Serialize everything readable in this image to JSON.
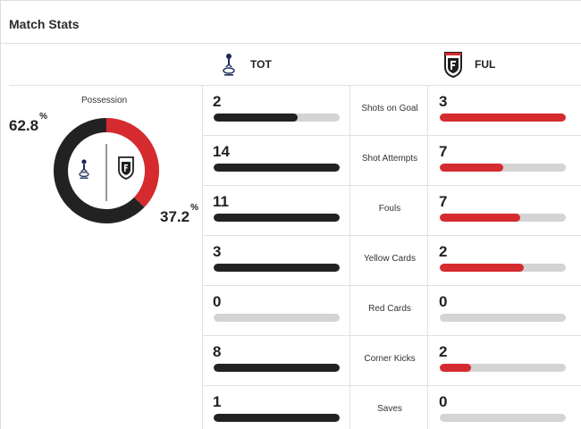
{
  "title": "Match Stats",
  "colors": {
    "home": "#222222",
    "away": "#d52b2f",
    "track": "#d4d4d4"
  },
  "home": {
    "abbr": "TOT",
    "logo_icon": "tottenham-crest-icon"
  },
  "away": {
    "abbr": "FUL",
    "logo_icon": "fulham-crest-icon"
  },
  "possession": {
    "label": "Possession",
    "home_value": "62.8",
    "away_value": "37.2",
    "unit": "%",
    "home_fraction": 0.628,
    "away_fraction": 0.372
  },
  "stats": [
    {
      "label": "Shots on Goal",
      "home": "2",
      "away": "3",
      "home_fill": 0.67,
      "away_fill": 1.0
    },
    {
      "label": "Shot Attempts",
      "home": "14",
      "away": "7",
      "home_fill": 1.0,
      "away_fill": 0.5
    },
    {
      "label": "Fouls",
      "home": "11",
      "away": "7",
      "home_fill": 1.0,
      "away_fill": 0.64
    },
    {
      "label": "Yellow Cards",
      "home": "3",
      "away": "2",
      "home_fill": 1.0,
      "away_fill": 0.67
    },
    {
      "label": "Red Cards",
      "home": "0",
      "away": "0",
      "home_fill": 0,
      "away_fill": 0
    },
    {
      "label": "Corner Kicks",
      "home": "8",
      "away": "2",
      "home_fill": 1.0,
      "away_fill": 0.25
    },
    {
      "label": "Saves",
      "home": "1",
      "away": "0",
      "home_fill": 1.0,
      "away_fill": 0
    }
  ]
}
